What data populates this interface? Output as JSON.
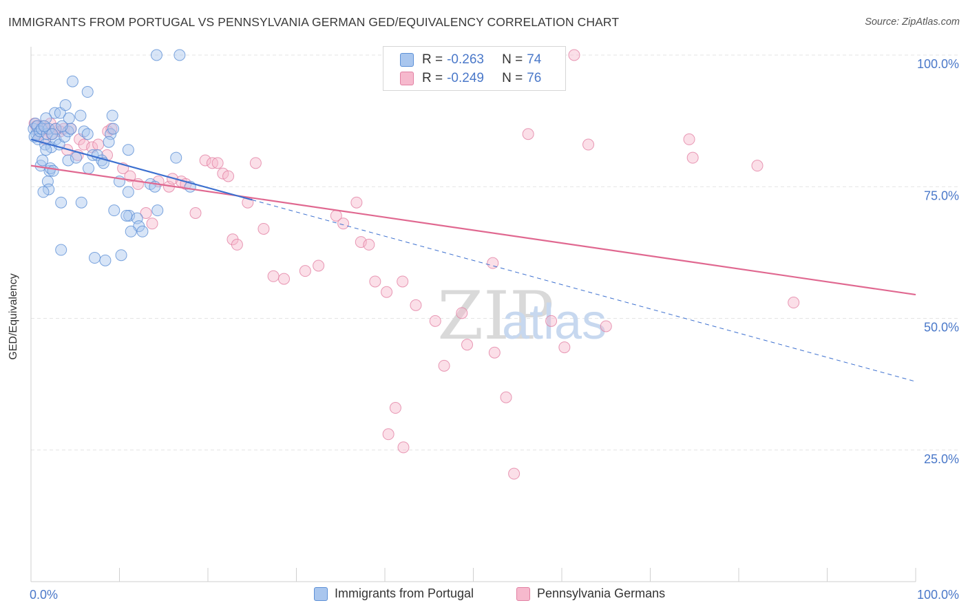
{
  "title": "IMMIGRANTS FROM PORTUGAL VS PENNSYLVANIA GERMAN GED/EQUIVALENCY CORRELATION CHART",
  "source": "Source: ZipAtlas.com",
  "watermark": {
    "zip": "ZIP",
    "atlas": "atlas"
  },
  "legend": {
    "r_label": "R = ",
    "n_label": "N = ",
    "series": [
      {
        "r": "-0.263",
        "n": "74"
      },
      {
        "r": "-0.249",
        "n": "76"
      }
    ]
  },
  "bottom_legend": [
    "Immigrants from Portugal",
    "Pennsylvania Germans"
  ],
  "colors": {
    "blue_fill": "#a9c6ee",
    "blue_stroke": "#5b8fd6",
    "blue_line": "#3b6fcf",
    "pink_fill": "#f6b9cd",
    "pink_stroke": "#e27fa2",
    "pink_line": "#e06890",
    "tick_label": "#4a78c9"
  },
  "chart_data": {
    "type": "scatter",
    "title": "IMMIGRANTS FROM PORTUGAL VS PENNSYLVANIA GERMAN GED/EQUIVALENCY CORRELATION CHART",
    "xlabel": "",
    "ylabel": "GED/Equivalency",
    "xlim": [
      0,
      100
    ],
    "ylim": [
      0,
      105
    ],
    "x_tick_labels": [
      "0.0%",
      "100.0%"
    ],
    "y_ticks": [
      25,
      50,
      75,
      100
    ],
    "y_tick_labels": [
      "25.0%",
      "50.0%",
      "75.0%",
      "100.0%"
    ],
    "grid": true,
    "series": [
      {
        "name": "Immigrants from Portugal",
        "points": [
          [
            0.3,
            86
          ],
          [
            0.5,
            87
          ],
          [
            0.6,
            85
          ],
          [
            0.4,
            84.5
          ],
          [
            0.8,
            84
          ],
          [
            0.7,
            86.5
          ],
          [
            1.0,
            85.5
          ],
          [
            1.2,
            86
          ],
          [
            1.6,
            83
          ],
          [
            1.8,
            85
          ],
          [
            2.0,
            86
          ],
          [
            2.3,
            82.5
          ],
          [
            2.8,
            84
          ],
          [
            3.2,
            83
          ],
          [
            3.8,
            84.5
          ],
          [
            4.2,
            85.5
          ],
          [
            4.5,
            86
          ],
          [
            1.1,
            79
          ],
          [
            1.3,
            80
          ],
          [
            1.7,
            82
          ],
          [
            2.1,
            78
          ],
          [
            2.2,
            78.5
          ],
          [
            2.5,
            78
          ],
          [
            1.9,
            76
          ],
          [
            2.0,
            74.5
          ],
          [
            1.4,
            74
          ],
          [
            3.4,
            72
          ],
          [
            5.7,
            72
          ],
          [
            2.8,
            86
          ],
          [
            2.7,
            89
          ],
          [
            3.3,
            89
          ],
          [
            3.9,
            90.5
          ],
          [
            4.3,
            88
          ],
          [
            5.6,
            88.5
          ],
          [
            6.4,
            93
          ],
          [
            4.7,
            95
          ],
          [
            1.7,
            88
          ],
          [
            3.5,
            86.5
          ],
          [
            4.2,
            80
          ],
          [
            5.1,
            80.5
          ],
          [
            6.0,
            85.5
          ],
          [
            6.4,
            85
          ],
          [
            7.0,
            81
          ],
          [
            7.5,
            81
          ],
          [
            8.0,
            80
          ],
          [
            8.2,
            79.5
          ],
          [
            9.0,
            85
          ],
          [
            9.3,
            86
          ],
          [
            8.8,
            83.5
          ],
          [
            9.2,
            88.5
          ],
          [
            6.5,
            78.5
          ],
          [
            11.0,
            82
          ],
          [
            10.0,
            76
          ],
          [
            11.0,
            74
          ],
          [
            11.1,
            69.5
          ],
          [
            9.4,
            70.5
          ],
          [
            10.8,
            69.5
          ],
          [
            12.0,
            69
          ],
          [
            12.2,
            67.5
          ],
          [
            12.6,
            66.5
          ],
          [
            11.3,
            66.5
          ],
          [
            13.5,
            75.5
          ],
          [
            14.0,
            75
          ],
          [
            14.3,
            70.5
          ],
          [
            16.4,
            80.5
          ],
          [
            18.0,
            75
          ],
          [
            3.4,
            63
          ],
          [
            7.2,
            61.5
          ],
          [
            8.4,
            61
          ],
          [
            10.2,
            62
          ],
          [
            14.2,
            100
          ],
          [
            16.8,
            100
          ],
          [
            1.5,
            86.5
          ],
          [
            2.4,
            85
          ]
        ]
      },
      {
        "name": "Pennsylvania Germans",
        "points": [
          [
            0.4,
            87
          ],
          [
            0.6,
            86.5
          ],
          [
            0.9,
            85
          ],
          [
            1.3,
            86.5
          ],
          [
            1.7,
            86
          ],
          [
            2.2,
            87
          ],
          [
            2.8,
            86
          ],
          [
            3.3,
            85.5
          ],
          [
            3.7,
            86
          ],
          [
            4.5,
            86
          ],
          [
            5.5,
            84
          ],
          [
            6.0,
            83
          ],
          [
            1.6,
            84
          ],
          [
            2.3,
            85
          ],
          [
            4.1,
            82
          ],
          [
            5.3,
            81
          ],
          [
            6.9,
            82.5
          ],
          [
            7.6,
            83
          ],
          [
            8.6,
            81
          ],
          [
            8.7,
            85.5
          ],
          [
            9.1,
            86
          ],
          [
            10.4,
            78.5
          ],
          [
            11.2,
            77
          ],
          [
            12.1,
            75.5
          ],
          [
            13.0,
            70
          ],
          [
            13.7,
            68
          ],
          [
            14.4,
            76
          ],
          [
            15.6,
            75
          ],
          [
            16.0,
            76.5
          ],
          [
            17.0,
            76
          ],
          [
            17.5,
            75.5
          ],
          [
            18.6,
            70
          ],
          [
            19.7,
            80
          ],
          [
            20.5,
            79.5
          ],
          [
            21.1,
            79.5
          ],
          [
            21.7,
            77.5
          ],
          [
            22.3,
            77
          ],
          [
            22.8,
            65
          ],
          [
            23.3,
            64
          ],
          [
            24.5,
            72
          ],
          [
            25.4,
            79.5
          ],
          [
            26.3,
            67
          ],
          [
            27.4,
            58
          ],
          [
            28.6,
            57.5
          ],
          [
            31.0,
            59
          ],
          [
            32.5,
            60
          ],
          [
            34.5,
            69.5
          ],
          [
            35.3,
            68
          ],
          [
            36.8,
            72
          ],
          [
            37.3,
            64.5
          ],
          [
            38.2,
            64
          ],
          [
            38.9,
            57
          ],
          [
            40.2,
            55
          ],
          [
            42.0,
            57
          ],
          [
            43.5,
            52.5
          ],
          [
            45.7,
            49.5
          ],
          [
            46.7,
            41
          ],
          [
            40.4,
            28
          ],
          [
            41.2,
            33
          ],
          [
            42.1,
            25.5
          ],
          [
            48.7,
            51
          ],
          [
            49.3,
            45
          ],
          [
            52.2,
            60.5
          ],
          [
            52.4,
            43.5
          ],
          [
            53.7,
            35
          ],
          [
            54.6,
            20.5
          ],
          [
            56.2,
            85
          ],
          [
            58.8,
            49.5
          ],
          [
            60.3,
            44.5
          ],
          [
            61.4,
            100
          ],
          [
            63.0,
            83
          ],
          [
            65.0,
            48.5
          ],
          [
            74.4,
            84
          ],
          [
            74.8,
            80.5
          ],
          [
            82.1,
            79
          ],
          [
            86.2,
            53
          ]
        ]
      }
    ],
    "trendlines": [
      {
        "series": "Immigrants from Portugal",
        "x": [
          0,
          25
        ],
        "y": [
          84,
          72.5
        ],
        "extended_to": [
          100,
          38
        ]
      },
      {
        "series": "Pennsylvania Germans",
        "x": [
          0,
          100
        ],
        "y": [
          79,
          54.5
        ]
      }
    ]
  }
}
